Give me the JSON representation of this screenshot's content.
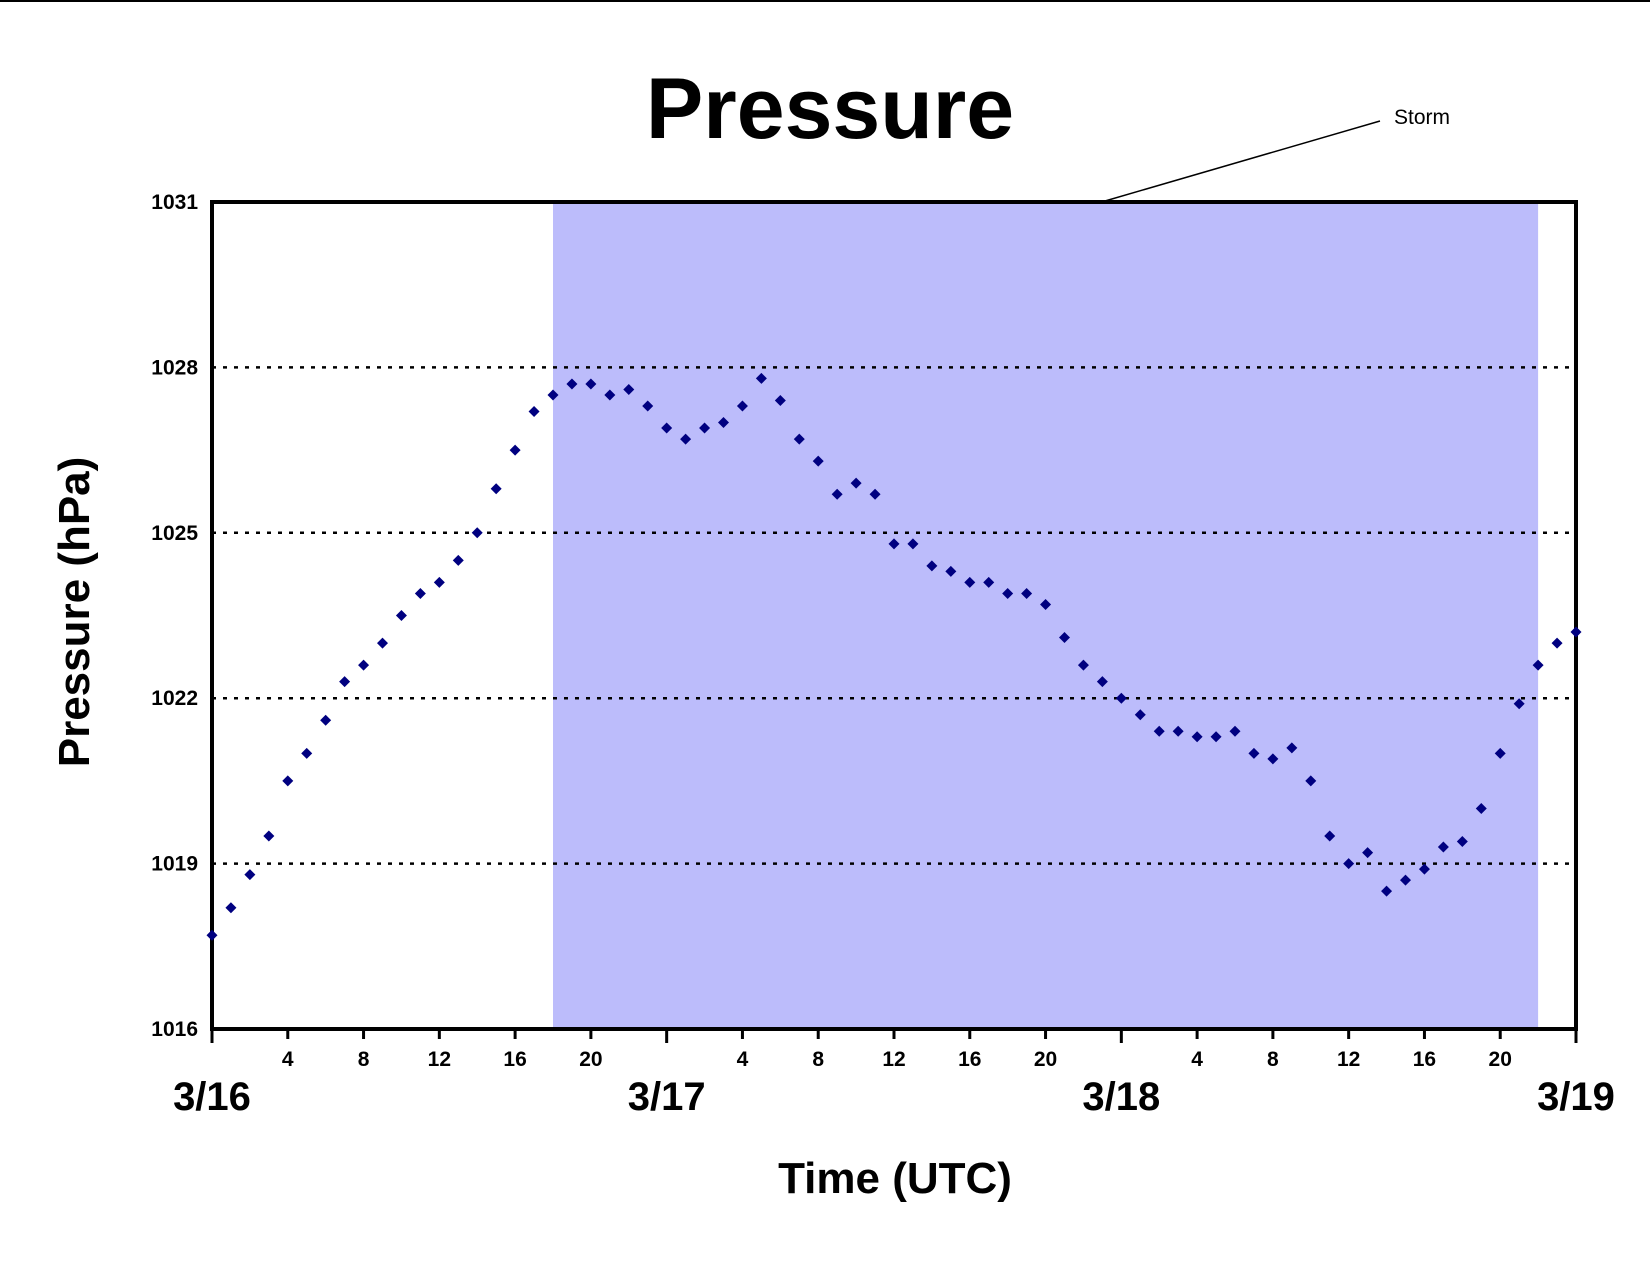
{
  "chart_data": {
    "type": "scatter",
    "title": "Pressure",
    "xlabel": "Time (UTC)",
    "ylabel": "Pressure (hPa)",
    "ylim": [
      1016,
      1031
    ],
    "yticks": [
      1016,
      1019,
      1022,
      1025,
      1028,
      1031
    ],
    "xlim": [
      "3/16 00:00",
      "3/19 00:00"
    ],
    "x_hour_tick_labels": [
      "4",
      "8",
      "12",
      "16",
      "20"
    ],
    "day_labels": [
      "3/16",
      "3/17",
      "3/18",
      "3/19"
    ],
    "grid": "horizontal dotted",
    "colors": {
      "marker": "#000080",
      "storm_band": "#bcbcfb",
      "axis": "#000000"
    },
    "annotations": [
      {
        "text": "Storm",
        "type": "shaded-band",
        "x_start": "3/16 18:00",
        "x_end": "3/18 22:00"
      }
    ],
    "series": [
      {
        "x": [
          "3/16 00:00",
          "3/16 01:00",
          "3/16 02:00",
          "3/16 03:00",
          "3/16 04:00",
          "3/16 05:00",
          "3/16 06:00",
          "3/16 07:00",
          "3/16 08:00",
          "3/16 09:00",
          "3/16 10:00",
          "3/16 11:00",
          "3/16 12:00",
          "3/16 13:00",
          "3/16 14:00",
          "3/16 15:00",
          "3/16 16:00",
          "3/16 17:00",
          "3/16 18:00",
          "3/16 19:00",
          "3/16 20:00",
          "3/16 21:00",
          "3/16 22:00",
          "3/16 23:00",
          "3/17 00:00",
          "3/17 01:00",
          "3/17 02:00",
          "3/17 03:00",
          "3/17 04:00",
          "3/17 05:00",
          "3/17 06:00",
          "3/17 07:00",
          "3/17 08:00",
          "3/17 09:00",
          "3/17 10:00",
          "3/17 11:00",
          "3/17 12:00",
          "3/17 13:00",
          "3/17 14:00",
          "3/17 15:00",
          "3/17 16:00",
          "3/17 17:00",
          "3/17 18:00",
          "3/17 19:00",
          "3/17 20:00",
          "3/17 21:00",
          "3/17 22:00",
          "3/17 23:00",
          "3/18 00:00",
          "3/18 01:00",
          "3/18 02:00",
          "3/18 03:00",
          "3/18 04:00",
          "3/18 05:00",
          "3/18 06:00",
          "3/18 07:00",
          "3/18 08:00",
          "3/18 09:00",
          "3/18 10:00",
          "3/18 11:00",
          "3/18 12:00",
          "3/18 13:00",
          "3/18 14:00",
          "3/18 15:00",
          "3/18 16:00",
          "3/18 17:00",
          "3/18 18:00",
          "3/18 19:00",
          "3/18 20:00",
          "3/18 21:00",
          "3/18 22:00",
          "3/18 23:00",
          "3/19 00:00"
        ],
        "y": [
          1017.7,
          1018.2,
          1018.8,
          1019.5,
          1020.5,
          1021.0,
          1021.6,
          1022.3,
          1022.6,
          1023.0,
          1023.5,
          1023.9,
          1024.1,
          1024.5,
          1025.0,
          1025.8,
          1026.5,
          1027.2,
          1027.5,
          1027.7,
          1027.7,
          1027.5,
          1027.6,
          1027.3,
          1026.9,
          1026.7,
          1026.9,
          1027.0,
          1027.3,
          1027.8,
          1027.4,
          1026.7,
          1026.3,
          1025.7,
          1025.9,
          1025.7,
          1024.8,
          1024.8,
          1024.4,
          1024.3,
          1024.1,
          1024.1,
          1023.9,
          1023.9,
          1023.7,
          1023.1,
          1022.6,
          1022.3,
          1022.0,
          1021.7,
          1021.4,
          1021.4,
          1021.3,
          1021.3,
          1021.4,
          1021.0,
          1020.9,
          1021.1,
          1020.5,
          1019.5,
          1019.0,
          1019.2,
          1018.5,
          1018.7,
          1018.9,
          1019.3,
          1019.4,
          1020.0,
          1021.0,
          1021.9,
          1022.6,
          1023.0,
          1023.2
        ]
      }
    ]
  }
}
